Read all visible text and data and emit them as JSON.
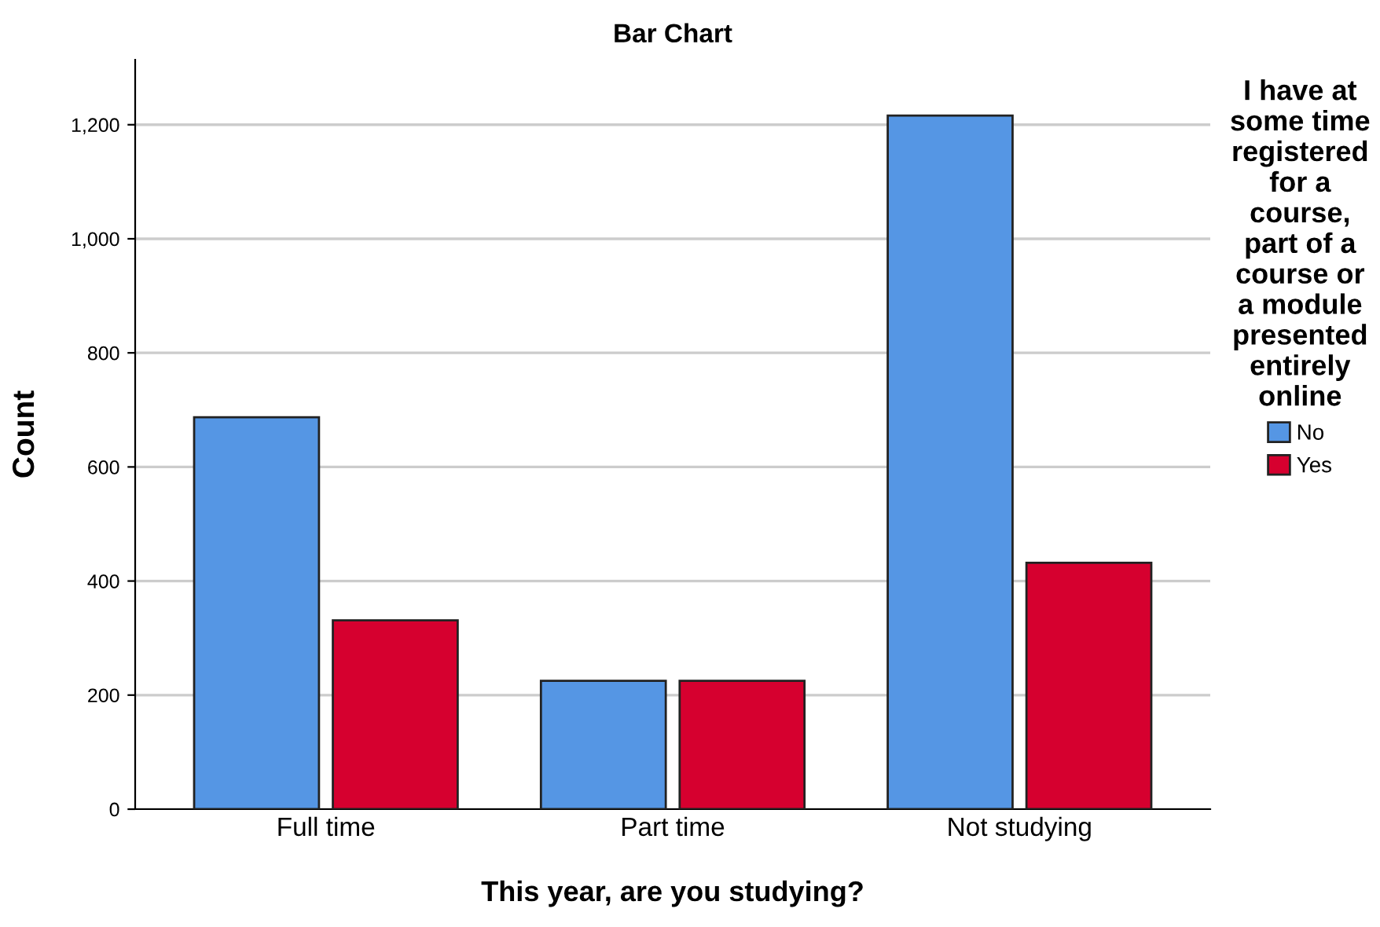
{
  "chart_data": {
    "type": "bar",
    "title": "Bar Chart",
    "xlabel": "This year, are you studying?",
    "ylabel": "Count",
    "legend_title": "I have at\nsome time\nregistered\nfor a\ncourse,\npart of a\ncourse or\na module\npresented\nentirely\nonline",
    "categories": [
      "Full time",
      "Part time",
      "Not studying"
    ],
    "series": [
      {
        "name": "No",
        "color": "#5596e4",
        "values": [
          687,
          225,
          1216
        ]
      },
      {
        "name": "Yes",
        "color": "#d6002f",
        "values": [
          331,
          225,
          432
        ]
      }
    ],
    "ylim": [
      0,
      1314
    ],
    "yticks": [
      0,
      {
        "value": 200,
        "label": "200"
      },
      {
        "value": 400,
        "label": "400"
      },
      {
        "value": 600,
        "label": "600"
      },
      {
        "value": 800,
        "label": "800"
      },
      {
        "value": 1000,
        "label": "1,000"
      },
      {
        "value": 1200,
        "label": "1,200"
      }
    ],
    "grid": "y",
    "legend": "right"
  }
}
